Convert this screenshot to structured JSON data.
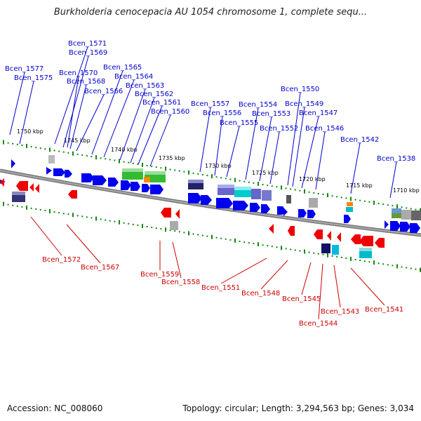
{
  "title": "Burkholderia cenocepacia AU 1054 chromosome 1, complete sequ...",
  "footer": {
    "accession": "Accession: NC_008060",
    "topology": "Topology: circular; Length: 3,294,563 bp; Genes: 3,034"
  },
  "colors": {
    "forward_gene": "#0000ee",
    "reverse_gene": "#ee0000",
    "forward_label": "#0000cc",
    "reverse_label": "#cc0000",
    "tick": "#118811",
    "backbone": "#777777"
  },
  "scale_labels": [
    "1750 kbp",
    "1745 kbp",
    "1740 kbp",
    "1735 kbp",
    "1730 kbp",
    "1725 kbp",
    "1720 kbp",
    "1715 kbp",
    "1710 kbp"
  ],
  "forward_labels": [
    "Bcen_1577",
    "Bcen_1575",
    "Bcen_1571",
    "Bcen_1569",
    "Bcen_1570",
    "Bcen_1568",
    "Bcen_1566",
    "Bcen_1565",
    "Bcen_1564",
    "Bcen_1563",
    "Bcen_1562",
    "Bcen_1561",
    "Bcen_1560",
    "Bcen_1557",
    "Bcen_1556",
    "Bcen_1555",
    "Bcen_1554",
    "Bcen_1553",
    "Bcen_1552",
    "Bcen_1550",
    "Bcen_1549",
    "Bcen_1547",
    "Bcen_1546",
    "Bcen_1542",
    "Bcen_1538"
  ],
  "reverse_labels": [
    "Bcen_1572",
    "Bcen_1567",
    "Bcen_1559",
    "Bcen_1558",
    "Bcen_1551",
    "Bcen_1548",
    "Bcen_1545",
    "Bcen_1544",
    "Bcen_1543",
    "Bcen_1541"
  ]
}
